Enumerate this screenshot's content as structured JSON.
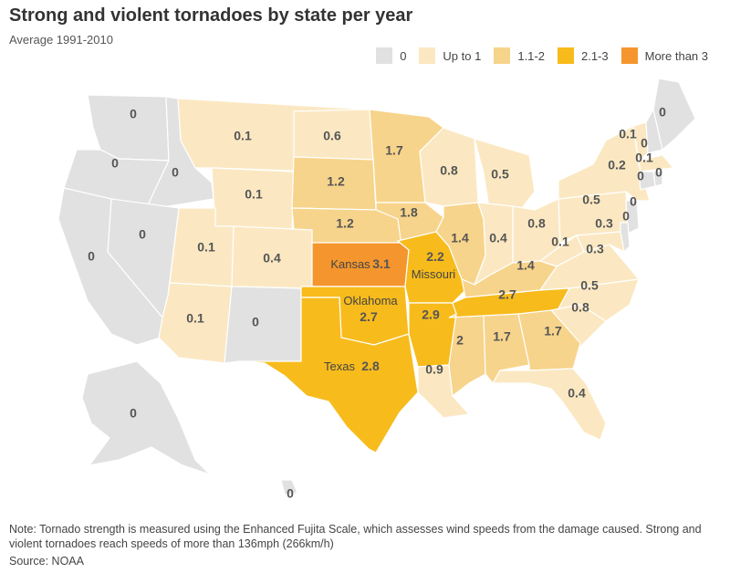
{
  "header": {
    "title": "Strong and violent tornadoes by state per year",
    "subtitle": "Average 1991-2010"
  },
  "legend": [
    {
      "label": "0",
      "color": "#e1e1e1"
    },
    {
      "label": "Up to 1",
      "color": "#fbe8c2"
    },
    {
      "label": "1.1-2",
      "color": "#f7d48b"
    },
    {
      "label": "2.1-3",
      "color": "#f7bb1c"
    },
    {
      "label": "More than 3",
      "color": "#f4962d"
    }
  ],
  "states": [
    {
      "name": "Washington",
      "value": "0"
    },
    {
      "name": "Oregon",
      "value": "0"
    },
    {
      "name": "Idaho",
      "value": "0"
    },
    {
      "name": "Montana",
      "value": "0.1"
    },
    {
      "name": "North Dakota",
      "value": "0.6"
    },
    {
      "name": "Minnesota",
      "value": "1.7"
    },
    {
      "name": "Wisconsin",
      "value": "0.8"
    },
    {
      "name": "Michigan",
      "value": "0.5"
    },
    {
      "name": "Wyoming",
      "value": "0.1"
    },
    {
      "name": "South Dakota",
      "value": "1.2"
    },
    {
      "name": "Iowa",
      "value": "1.8"
    },
    {
      "name": "Nebraska",
      "value": "1.2"
    },
    {
      "name": "Nevada",
      "value": "0"
    },
    {
      "name": "California",
      "value": "0"
    },
    {
      "name": "Utah",
      "value": "0.1"
    },
    {
      "name": "Colorado",
      "value": "0.4"
    },
    {
      "name": "Kansas",
      "value": "3.1",
      "label": "Kansas"
    },
    {
      "name": "Missouri",
      "value": "2.2",
      "label": "Missouri"
    },
    {
      "name": "Illinois",
      "value": "1.4"
    },
    {
      "name": "Indiana",
      "value": "0.4"
    },
    {
      "name": "Ohio",
      "value": "0.8"
    },
    {
      "name": "Pennsylvania",
      "value": "0.5"
    },
    {
      "name": "New York",
      "value": "0.2"
    },
    {
      "name": "Vermont",
      "value": "0.1"
    },
    {
      "name": "New Hampshire",
      "value": "0"
    },
    {
      "name": "Maine",
      "value": "0"
    },
    {
      "name": "Massachusetts",
      "value": "0.1"
    },
    {
      "name": "Rhode Island",
      "value": "0"
    },
    {
      "name": "Connecticut",
      "value": "0"
    },
    {
      "name": "New Jersey",
      "value": "0"
    },
    {
      "name": "Delaware",
      "value": "0"
    },
    {
      "name": "Maryland",
      "value": "0.3"
    },
    {
      "name": "West Virginia",
      "value": "0.1"
    },
    {
      "name": "Virginia",
      "value": "0.3"
    },
    {
      "name": "Kentucky",
      "value": "1.4"
    },
    {
      "name": "Tennessee",
      "value": "2.7"
    },
    {
      "name": "North Carolina",
      "value": "0.5"
    },
    {
      "name": "South Carolina",
      "value": "0.8"
    },
    {
      "name": "Arizona",
      "value": "0.1"
    },
    {
      "name": "New Mexico",
      "value": "0"
    },
    {
      "name": "Oklahoma",
      "value": "2.7",
      "label": "Oklahoma"
    },
    {
      "name": "Texas",
      "value": "2.8",
      "label": "Texas"
    },
    {
      "name": "Arkansas",
      "value": "2.9"
    },
    {
      "name": "Louisiana",
      "value": "0.9"
    },
    {
      "name": "Mississippi",
      "value": "2"
    },
    {
      "name": "Alabama",
      "value": "1.7"
    },
    {
      "name": "Georgia",
      "value": "1.7"
    },
    {
      "name": "Florida",
      "value": "0.4"
    },
    {
      "name": "Alaska",
      "value": "0"
    },
    {
      "name": "Hawaii",
      "value": "0"
    }
  ],
  "footer": {
    "note": "Note: Tornado strength is measured using the Enhanced Fujita Scale, which assesses wind speeds from the damage caused. Strong and violent tornadoes reach speeds of more than 136mph (266km/h)",
    "source": "Source: NOAA"
  }
}
